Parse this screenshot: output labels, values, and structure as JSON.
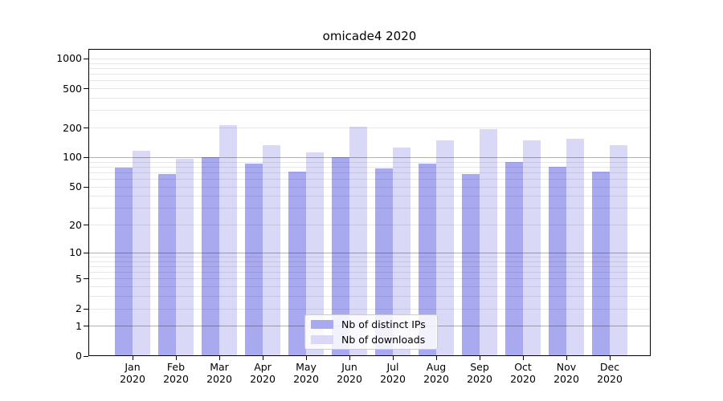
{
  "chart_data": {
    "type": "bar",
    "title": "omicade4 2020",
    "categories": [
      "Jan",
      "Feb",
      "Mar",
      "Apr",
      "May",
      "Jun",
      "Jul",
      "Aug",
      "Sep",
      "Oct",
      "Nov",
      "Dec"
    ],
    "category_sublabel": "2020",
    "series": [
      {
        "name": "Nb of distinct IPs",
        "color": "#a9a9ef",
        "values": [
          79,
          68,
          100,
          87,
          72,
          100,
          78,
          86,
          68,
          90,
          81,
          72
        ]
      },
      {
        "name": "Nb of downloads",
        "color": "#d9d9f7",
        "values": [
          118,
          98,
          213,
          133,
          114,
          207,
          126,
          151,
          194,
          150,
          156,
          134
        ]
      }
    ],
    "y_axis": {
      "ticks": [
        0,
        1,
        2,
        5,
        10,
        20,
        50,
        100,
        200,
        500,
        1000
      ],
      "scale": "log10(value+1)",
      "range": [
        0,
        1260
      ]
    },
    "x_axis": {
      "tick_label_format": "Month over 2020, two lines"
    },
    "grid": {
      "orientation": "horizontal",
      "major_values": [
        1,
        10,
        100
      ],
      "minor_values": "2-9 of each decade, plus 1000",
      "major_color": "rgba(0,0,0,0.30)",
      "minor_color": "rgba(0,0,0,0.09)"
    },
    "legend": {
      "position": "bottom-center-inside"
    }
  }
}
